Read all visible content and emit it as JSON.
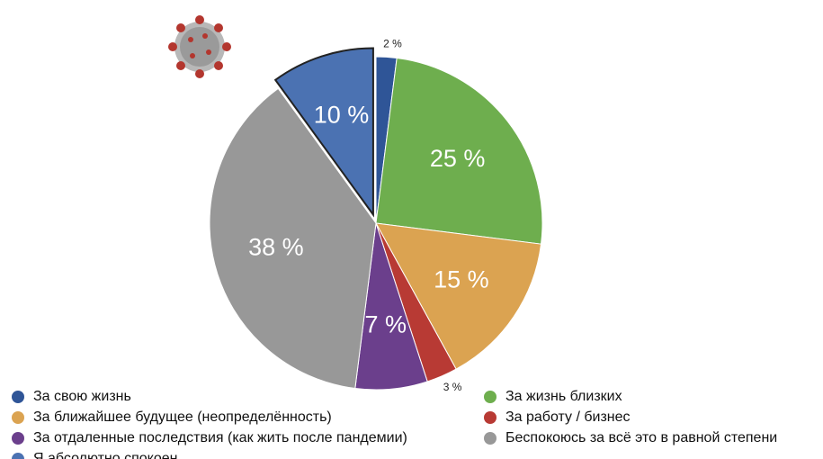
{
  "chart_data": {
    "type": "pie",
    "categories": [
      "За свою жизнь",
      "За жизнь близких",
      "За ближайшее будущее (неопределённость)",
      "За работу / бизнес",
      "За отдаленные последствия (как жить после пандемии)",
      "Беспокоюсь за всё это в равной степени",
      "Я абсолютно спокоен"
    ],
    "values": [
      2,
      25,
      15,
      3,
      7,
      38,
      10
    ],
    "value_labels": [
      "2 %",
      "25 %",
      "15 %",
      "3 %",
      "7 %",
      "38 %",
      "10 %"
    ],
    "colors": [
      "#2f5597",
      "#6eae4e",
      "#dba351",
      "#b83a34",
      "#6b3f8c",
      "#989898",
      "#4b72b2"
    ],
    "exploded": [
      6
    ]
  }
}
